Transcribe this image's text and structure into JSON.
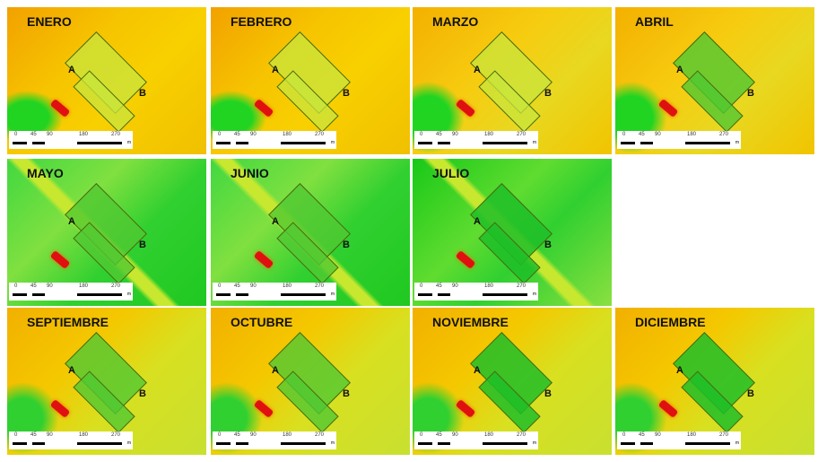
{
  "panels": [
    {
      "title": "ENERO",
      "theme": "dry",
      "fill": "pale"
    },
    {
      "title": "FEBRERO",
      "theme": "dry",
      "fill": "pale"
    },
    {
      "title": "MARZO",
      "theme": "mid",
      "fill": "pale"
    },
    {
      "title": "ABRIL",
      "theme": "mid",
      "fill": "green"
    },
    {
      "title": "MAYO",
      "theme": "wet",
      "fill": "green"
    },
    {
      "title": "JUNIO",
      "theme": "wet",
      "fill": "green"
    },
    {
      "title": "JULIO",
      "theme": "wet2",
      "fill": "dark"
    },
    {
      "title": "SEPTIEMBRE",
      "theme": "autumn",
      "fill": "green"
    },
    {
      "title": "OCTUBRE",
      "theme": "autumn",
      "fill": "green"
    },
    {
      "title": "NOVIEMBRE",
      "theme": "autumn",
      "fill": "dark"
    },
    {
      "title": "DICIEMBRE",
      "theme": "autumn",
      "fill": "dark"
    }
  ],
  "parcel_labels": {
    "a": "A",
    "b": "B"
  },
  "scale_bar": {
    "ticks": [
      "0",
      "45",
      "90",
      "180",
      "270"
    ],
    "unit": "m"
  },
  "colors": {
    "low": "#f2a100",
    "mid": "#f8d000",
    "high": "#22d422",
    "hot": "#e01010"
  }
}
